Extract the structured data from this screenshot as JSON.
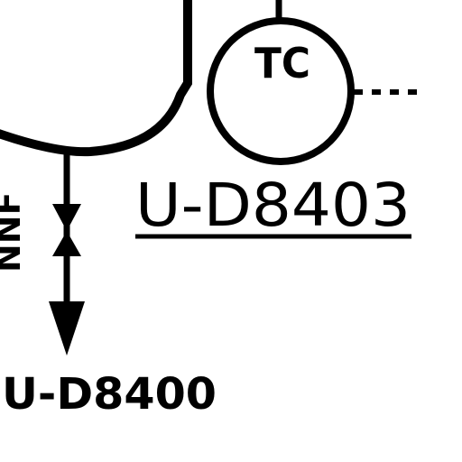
{
  "instrument": {
    "function_code": "TC",
    "tag": "U-D8403"
  },
  "line": {
    "tag": "U-D8400",
    "side_label": "NNF"
  },
  "colors": {
    "ink": "#000000",
    "background": "#ffffff"
  }
}
